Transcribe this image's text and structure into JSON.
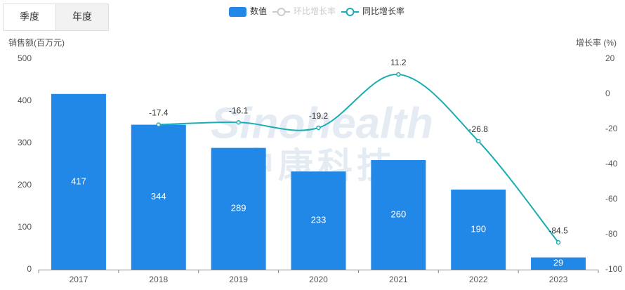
{
  "chart_data": {
    "type": "bar_line",
    "tabs": [
      "季度",
      "年度"
    ],
    "active_tab": 1,
    "watermark": [
      "Sinohealth",
      "中康科技"
    ],
    "y_label": "销售额(百万元)",
    "y2_label": "增长率 (%)",
    "categories": [
      "2017",
      "2018",
      "2019",
      "2020",
      "2021",
      "2022",
      "2023"
    ],
    "series": [
      {
        "name": "数值",
        "type": "bar",
        "color": "#2288e8",
        "values": [
          417,
          344,
          289,
          233,
          260,
          190,
          29
        ]
      },
      {
        "name": "环比增长率",
        "type": "line",
        "color": "#c8c8c8",
        "hidden": true,
        "axis": "y2",
        "values": [
          null,
          null,
          null,
          null,
          null,
          null,
          null
        ]
      },
      {
        "name": "同比增长率",
        "type": "line",
        "color": "#1aaeb4",
        "axis": "y2",
        "values": [
          null,
          -17.4,
          -16.1,
          -19.2,
          11.2,
          -26.8,
          -84.5
        ]
      }
    ],
    "ylim": [
      0,
      500
    ],
    "yticks": [
      0,
      100,
      200,
      300,
      400,
      500
    ],
    "y2lim": [
      -100,
      20
    ],
    "y2ticks": [
      -100,
      -80,
      -60,
      -40,
      -20,
      0,
      20
    ]
  }
}
